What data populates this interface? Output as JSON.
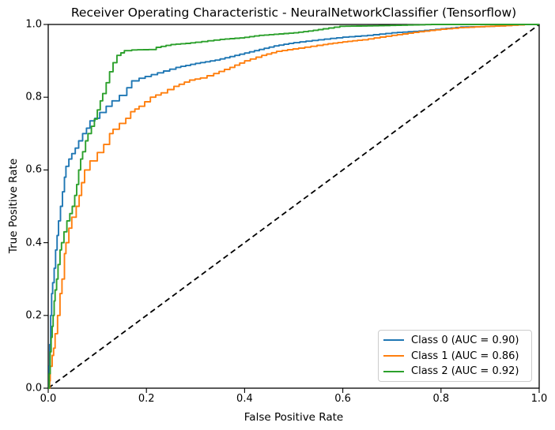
{
  "chart_data": {
    "type": "line",
    "title": "Receiver Operating Characteristic - NeuralNetworkClassifier (Tensorflow)",
    "xlabel": "False Positive Rate",
    "ylabel": "True Positive Rate",
    "xlim": [
      0.0,
      1.0
    ],
    "ylim": [
      0.0,
      1.0
    ],
    "grid": false,
    "legend_position": "lower right",
    "xticks": [
      0.0,
      0.2,
      0.4,
      0.6,
      0.8,
      1.0
    ],
    "yticks": [
      0.0,
      0.2,
      0.4,
      0.6,
      0.8,
      1.0
    ],
    "xtick_labels": [
      "0.0",
      "0.2",
      "0.4",
      "0.6",
      "0.8",
      "1.0"
    ],
    "ytick_labels": [
      "0.0",
      "0.2",
      "0.4",
      "0.6",
      "0.8",
      "1.0"
    ],
    "reference_line": {
      "style": "dashed",
      "color": "#000000",
      "from": [
        0,
        0
      ],
      "to": [
        1,
        1
      ]
    },
    "series": [
      {
        "name": "Class 0",
        "legend_label": "Class 0 (AUC = 0.90)",
        "auc": 0.9,
        "color": "#1f77b4",
        "points": [
          [
            0,
            0
          ],
          [
            0.002,
            0.06
          ],
          [
            0.003,
            0.12
          ],
          [
            0.005,
            0.2
          ],
          [
            0.007,
            0.26
          ],
          [
            0.009,
            0.29
          ],
          [
            0.012,
            0.33
          ],
          [
            0.015,
            0.38
          ],
          [
            0.018,
            0.42
          ],
          [
            0.021,
            0.46
          ],
          [
            0.025,
            0.5
          ],
          [
            0.029,
            0.54
          ],
          [
            0.033,
            0.58
          ],
          [
            0.036,
            0.61
          ],
          [
            0.042,
            0.63
          ],
          [
            0.048,
            0.645
          ],
          [
            0.055,
            0.66
          ],
          [
            0.062,
            0.68
          ],
          [
            0.07,
            0.7
          ],
          [
            0.078,
            0.715
          ],
          [
            0.085,
            0.735
          ],
          [
            0.095,
            0.742
          ],
          [
            0.105,
            0.758
          ],
          [
            0.118,
            0.775
          ],
          [
            0.13,
            0.79
          ],
          [
            0.145,
            0.805
          ],
          [
            0.16,
            0.826
          ],
          [
            0.17,
            0.845
          ],
          [
            0.185,
            0.852
          ],
          [
            0.21,
            0.862
          ],
          [
            0.235,
            0.872
          ],
          [
            0.26,
            0.882
          ],
          [
            0.3,
            0.893
          ],
          [
            0.34,
            0.902
          ],
          [
            0.38,
            0.915
          ],
          [
            0.42,
            0.928
          ],
          [
            0.46,
            0.941
          ],
          [
            0.5,
            0.95
          ],
          [
            0.55,
            0.958
          ],
          [
            0.6,
            0.965
          ],
          [
            0.65,
            0.97
          ],
          [
            0.7,
            0.977
          ],
          [
            0.755,
            0.982
          ],
          [
            0.8,
            0.988
          ],
          [
            0.84,
            0.993
          ],
          [
            0.88,
            0.994
          ],
          [
            0.92,
            0.996
          ],
          [
            0.955,
            1
          ],
          [
            1,
            1
          ]
        ]
      },
      {
        "name": "Class 1",
        "legend_label": "Class 1 (AUC = 0.86)",
        "auc": 0.86,
        "color": "#ff7f0e",
        "points": [
          [
            0,
            0
          ],
          [
            0.003,
            0.02
          ],
          [
            0.004,
            0.06
          ],
          [
            0.008,
            0.09
          ],
          [
            0.011,
            0.11
          ],
          [
            0.014,
            0.15
          ],
          [
            0.019,
            0.2
          ],
          [
            0.024,
            0.26
          ],
          [
            0.028,
            0.3
          ],
          [
            0.033,
            0.37
          ],
          [
            0.036,
            0.4
          ],
          [
            0.042,
            0.44
          ],
          [
            0.048,
            0.47
          ],
          [
            0.057,
            0.5
          ],
          [
            0.063,
            0.53
          ],
          [
            0.068,
            0.565
          ],
          [
            0.074,
            0.6
          ],
          [
            0.085,
            0.625
          ],
          [
            0.1,
            0.648
          ],
          [
            0.113,
            0.67
          ],
          [
            0.125,
            0.7
          ],
          [
            0.132,
            0.712
          ],
          [
            0.145,
            0.728
          ],
          [
            0.158,
            0.742
          ],
          [
            0.168,
            0.76
          ],
          [
            0.185,
            0.775
          ],
          [
            0.208,
            0.8
          ],
          [
            0.23,
            0.812
          ],
          [
            0.256,
            0.83
          ],
          [
            0.288,
            0.847
          ],
          [
            0.31,
            0.853
          ],
          [
            0.337,
            0.865
          ],
          [
            0.37,
            0.882
          ],
          [
            0.4,
            0.9
          ],
          [
            0.435,
            0.915
          ],
          [
            0.465,
            0.926
          ],
          [
            0.51,
            0.935
          ],
          [
            0.56,
            0.945
          ],
          [
            0.6,
            0.952
          ],
          [
            0.64,
            0.958
          ],
          [
            0.7,
            0.97
          ],
          [
            0.755,
            0.98
          ],
          [
            0.8,
            0.987
          ],
          [
            0.836,
            0.991
          ],
          [
            0.88,
            0.994
          ],
          [
            0.92,
            0.996
          ],
          [
            0.97,
            1
          ],
          [
            1,
            1
          ]
        ]
      },
      {
        "name": "Class 2",
        "legend_label": "Class 2 (AUC = 0.92)",
        "auc": 0.92,
        "color": "#2ca02c",
        "points": [
          [
            0,
            0
          ],
          [
            0.002,
            0.04
          ],
          [
            0.004,
            0.1
          ],
          [
            0.006,
            0.14
          ],
          [
            0.008,
            0.17
          ],
          [
            0.01,
            0.2
          ],
          [
            0.012,
            0.24
          ],
          [
            0.014,
            0.27
          ],
          [
            0.017,
            0.3
          ],
          [
            0.02,
            0.34
          ],
          [
            0.024,
            0.38
          ],
          [
            0.027,
            0.4
          ],
          [
            0.032,
            0.43
          ],
          [
            0.038,
            0.46
          ],
          [
            0.044,
            0.48
          ],
          [
            0.049,
            0.5
          ],
          [
            0.054,
            0.53
          ],
          [
            0.058,
            0.56
          ],
          [
            0.062,
            0.6
          ],
          [
            0.066,
            0.63
          ],
          [
            0.07,
            0.65
          ],
          [
            0.076,
            0.68
          ],
          [
            0.081,
            0.7
          ],
          [
            0.088,
            0.72
          ],
          [
            0.094,
            0.74
          ],
          [
            0.1,
            0.765
          ],
          [
            0.106,
            0.79
          ],
          [
            0.111,
            0.81
          ],
          [
            0.118,
            0.84
          ],
          [
            0.125,
            0.87
          ],
          [
            0.132,
            0.895
          ],
          [
            0.14,
            0.915
          ],
          [
            0.148,
            0.922
          ],
          [
            0.155,
            0.928
          ],
          [
            0.17,
            0.93
          ],
          [
            0.205,
            0.931
          ],
          [
            0.22,
            0.937
          ],
          [
            0.25,
            0.945
          ],
          [
            0.28,
            0.948
          ],
          [
            0.3,
            0.951
          ],
          [
            0.325,
            0.955
          ],
          [
            0.35,
            0.959
          ],
          [
            0.39,
            0.963
          ],
          [
            0.43,
            0.97
          ],
          [
            0.47,
            0.974
          ],
          [
            0.5,
            0.977
          ],
          [
            0.53,
            0.982
          ],
          [
            0.56,
            0.988
          ],
          [
            0.594,
            0.995
          ],
          [
            0.65,
            0.996
          ],
          [
            0.72,
            0.998
          ],
          [
            0.78,
            1
          ],
          [
            1,
            1
          ]
        ]
      }
    ]
  }
}
